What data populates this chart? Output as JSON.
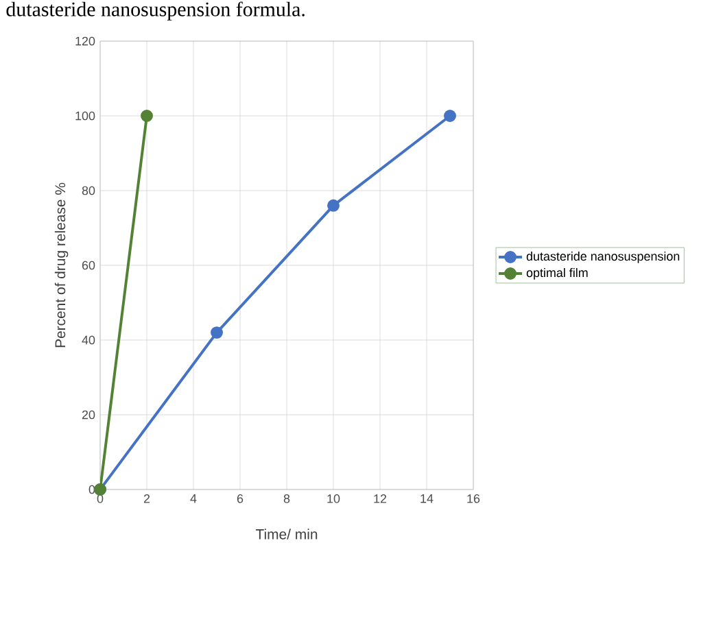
{
  "chart_data": {
    "type": "line",
    "xlabel": "Time/ min",
    "ylabel": "Percent of drug release %",
    "annotations": [
      "dutasteride nanosuspension formula."
    ],
    "xlim": [
      0,
      16
    ],
    "xticks": [
      0,
      2,
      4,
      6,
      8,
      10,
      12,
      14,
      16
    ],
    "ylim": [
      0,
      120
    ],
    "yticks": [
      0,
      20,
      40,
      60,
      80,
      100,
      120
    ],
    "grid": true,
    "legend": "right",
    "marker": "circle",
    "line_style": "solid",
    "series": [
      {
        "name": "dutasteride nanosuspension",
        "color": "#4472c4",
        "x": [
          0,
          5,
          10,
          15
        ],
        "values": [
          0,
          42,
          76,
          100
        ]
      },
      {
        "name": "optimal film",
        "color": "#548235",
        "x": [
          0,
          2
        ],
        "values": [
          0,
          100
        ]
      }
    ]
  }
}
